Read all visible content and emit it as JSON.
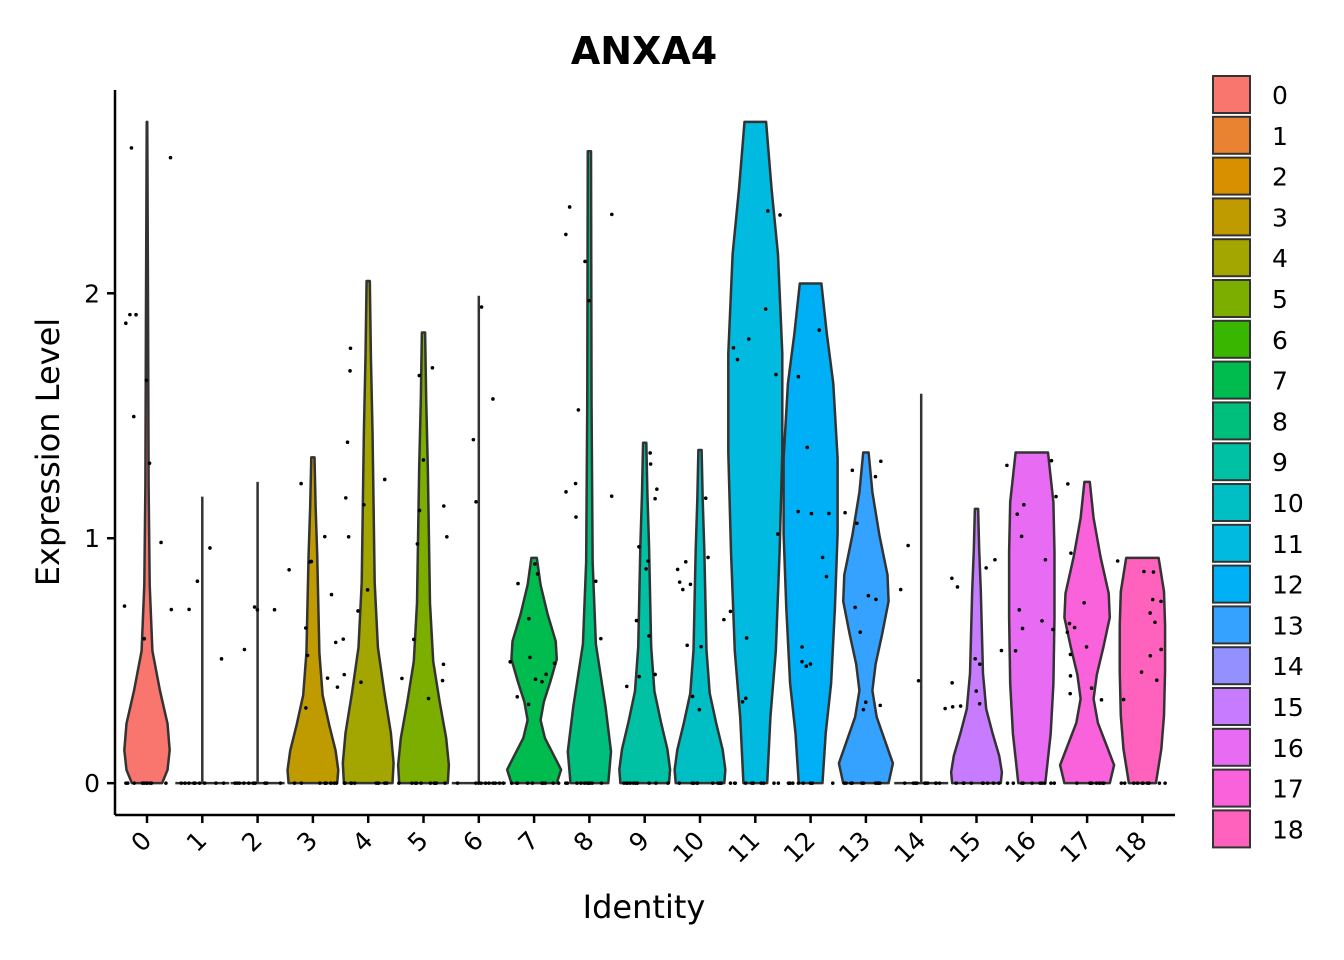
{
  "chart_data": {
    "type": "violin",
    "title": "ANXA4",
    "xlabel": "Identity",
    "ylabel": "Expression Level",
    "ylim": [
      -0.13,
      2.83
    ],
    "yticks": [
      0,
      1,
      2
    ],
    "categories": [
      "0",
      "1",
      "2",
      "3",
      "4",
      "5",
      "6",
      "7",
      "8",
      "9",
      "10",
      "11",
      "12",
      "13",
      "14",
      "15",
      "16",
      "17",
      "18"
    ],
    "colors": [
      "#F8766D",
      "#EA8331",
      "#D89000",
      "#C09B00",
      "#A3A500",
      "#7CAE00",
      "#39B600",
      "#00BB4E",
      "#00BF7D",
      "#00C1A3",
      "#00BFC4",
      "#00BAE0",
      "#00B0F6",
      "#35A2FF",
      "#9590FF",
      "#C77CFF",
      "#E76BF3",
      "#FA62DB",
      "#FF62BC"
    ],
    "max_values": [
      2.7,
      1.17,
      1.23,
      1.33,
      2.05,
      1.84,
      1.99,
      0.92,
      2.58,
      1.39,
      1.36,
      2.7,
      2.04,
      1.35,
      1.59,
      1.12,
      1.35,
      1.23,
      0.92
    ],
    "legend": {
      "position": "right",
      "entries": [
        "0",
        "1",
        "2",
        "3",
        "4",
        "5",
        "6",
        "7",
        "8",
        "9",
        "10",
        "11",
        "12",
        "13",
        "14",
        "15",
        "16",
        "17",
        "18"
      ]
    },
    "grid": false
  }
}
